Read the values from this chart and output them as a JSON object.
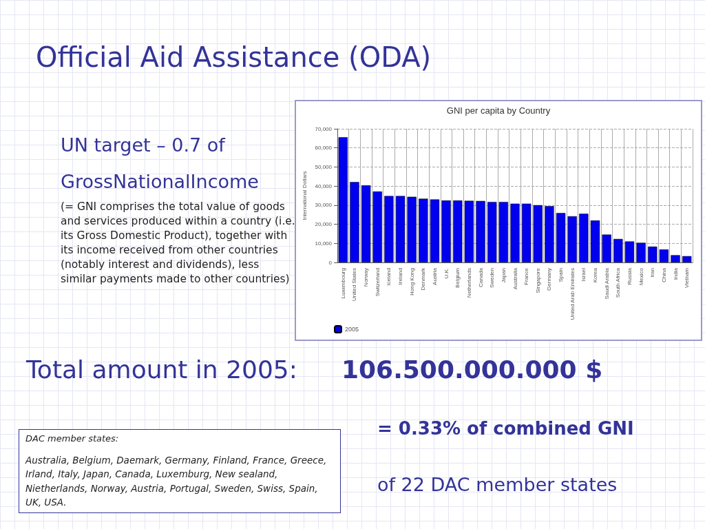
{
  "chart_data": {
    "type": "bar",
    "title": "Official Aid Assistance (ODA)",
    "subtitle": "GNI per capita by Country",
    "ylabel": "International Dollars",
    "categories": [
      "Luxembourg",
      "United States",
      "Norway",
      "Switzerland",
      "Iceland",
      "Ireland",
      "Hong Kong",
      "Denmark",
      "Austria",
      "U.K.",
      "Belgium",
      "Netherlands",
      "Canada",
      "Sweden",
      "Japan",
      "Australia",
      "France",
      "Singapore",
      "Germany",
      "Spain",
      "United Arab Emirates",
      "Israel",
      "Korea",
      "Saudi Arabia",
      "South Africa",
      "Russia",
      "Mexico",
      "Iran",
      "China",
      "India",
      "Vietnam"
    ],
    "series": [
      {
        "name": "2005",
        "color": "#0000ee",
        "values": [
          65600,
          42100,
          40400,
          37200,
          34800,
          34800,
          34400,
          33400,
          33000,
          32500,
          32500,
          32300,
          32200,
          31700,
          31700,
          30800,
          30800,
          30000,
          29500,
          25900,
          24200,
          25500,
          22000,
          14600,
          12300,
          11000,
          10300,
          8300,
          6800,
          3800,
          3300
        ]
      }
    ],
    "ylim": [
      0,
      70000
    ],
    "yticks": [
      {
        "value": 0,
        "label": "0"
      },
      {
        "value": 10000,
        "label": "10,000"
      },
      {
        "value": 20000,
        "label": "20,000"
      },
      {
        "value": 30000,
        "label": "30,000"
      },
      {
        "value": 40000,
        "label": "40,000"
      },
      {
        "value": 50000,
        "label": "50,000"
      },
      {
        "value": 60000,
        "label": "60,000"
      },
      {
        "value": 70000,
        "label": "70,000"
      }
    ],
    "grid": true,
    "legend": "bottom left",
    "annotations": [
      "UN target – 0.7 of",
      "GrossNationalIncome",
      "(= GNI comprises the total value of goods and services produced within a country (i.e. its Gross Domestic Product), together with its income received from other countries (notably interest and dividends), less similar payments made to other countries)",
      "Total amount in 2005:",
      "106.500.000.000 $",
      "= 0.33% of combined GNI",
      "of 22 DAC member states",
      "DAC member states:",
      "Australia, Belgium, Daemark, Germany, Finland, France, Greece, Irland, Italy, Japan, Canada, Luxemburg, New sealand, Nietherlands, Norway, Austria, Portugal, Sweden, Swiss, Spain, UK, USA."
    ]
  }
}
